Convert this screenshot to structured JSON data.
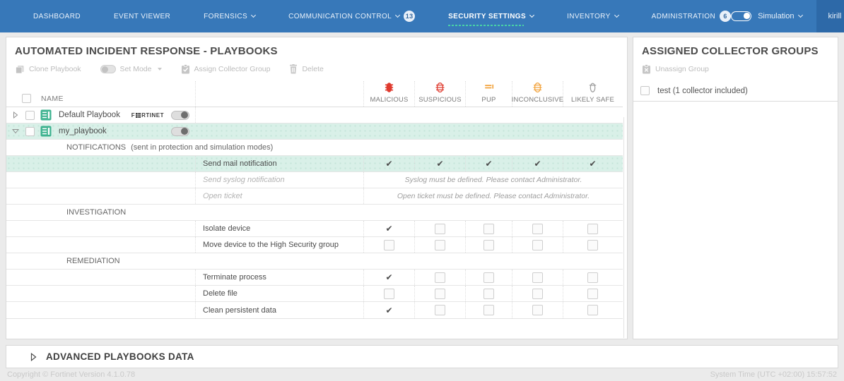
{
  "colors": {
    "nav_blue": "#3778b9",
    "accent_green": "#49d3a5",
    "malicious_red": "#df3a2e",
    "pup_orange": "#f2a33c",
    "highlight_teal": "#d9f0e8"
  },
  "nav": {
    "items": [
      {
        "label": "DASHBOARD"
      },
      {
        "label": "EVENT VIEWER"
      },
      {
        "label": "FORENSICS"
      },
      {
        "label": "COMMUNICATION CONTROL",
        "badge": "13"
      },
      {
        "label": "SECURITY SETTINGS"
      },
      {
        "label": "INVENTORY"
      },
      {
        "label": "ADMINISTRATION",
        "badge": "6"
      }
    ],
    "mode_label": "Simulation",
    "user": "kirill"
  },
  "playbooks": {
    "title": "AUTOMATED INCIDENT RESPONSE - PLAYBOOKS",
    "toolbar": {
      "clone": "Clone Playbook",
      "set_mode": "Set Mode",
      "assign": "Assign Collector Group",
      "delete": "Delete"
    },
    "table": {
      "name_header": "NAME",
      "columns": [
        "MALICIOUS",
        "SUSPICIOUS",
        "PUP",
        "INCONCLUSIVE",
        "LIKELY SAFE"
      ],
      "playbook_rows": [
        {
          "name": "Default Playbook",
          "brand_prefix": "F",
          "brand_suffix": "RTINET"
        },
        {
          "name": "my_playbook"
        }
      ],
      "sections": {
        "notifications": {
          "title": "NOTIFICATIONS",
          "note": "(sent in protection and simulation modes)"
        },
        "investigation": {
          "title": "INVESTIGATION"
        },
        "remediation": {
          "title": "REMEDIATION"
        }
      },
      "actions": {
        "send_mail": {
          "label": "Send mail notification",
          "cells": [
            "check",
            "check",
            "check",
            "check",
            "check"
          ]
        },
        "send_syslog": {
          "label": "Send syslog notification",
          "message": "Syslog must be defined. Please contact Administrator."
        },
        "open_ticket": {
          "label": "Open ticket",
          "message": "Open ticket must be defined. Please contact Administrator."
        },
        "isolate_device": {
          "label": "Isolate device",
          "cells": [
            "check",
            "box",
            "box",
            "box",
            "box"
          ]
        },
        "move_device": {
          "label": "Move device to the High Security group",
          "cells": [
            "box",
            "box",
            "box",
            "box",
            "box"
          ]
        },
        "terminate_process": {
          "label": "Terminate process",
          "cells": [
            "check",
            "box",
            "box",
            "box",
            "box"
          ]
        },
        "delete_file": {
          "label": "Delete file",
          "cells": [
            "box",
            "box",
            "box",
            "box",
            "box"
          ]
        },
        "clean_persistent_data": {
          "label": "Clean persistent data",
          "cells": [
            "check",
            "box",
            "box",
            "box",
            "box"
          ]
        }
      }
    }
  },
  "collector_groups": {
    "title": "ASSIGNED COLLECTOR GROUPS",
    "unassign_label": "Unassign Group",
    "groups": [
      {
        "label": "test (1 collector included)"
      }
    ]
  },
  "advanced": {
    "title": "ADVANCED PLAYBOOKS DATA"
  },
  "footer": {
    "copyright": "Copyright © Fortinet Version 4.1.0.78",
    "system_time": "System Time (UTC +02:00) 15:57:52"
  }
}
